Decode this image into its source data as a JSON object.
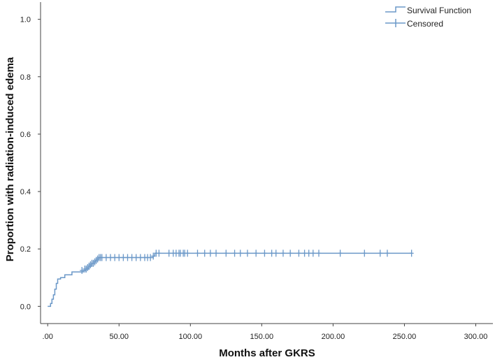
{
  "chart_data": {
    "type": "line",
    "title": "",
    "xlabel": "Months after GKRS",
    "ylabel": "Proportion with radiation-induced edema",
    "xlim": [
      -5,
      312
    ],
    "ylim": [
      -0.06,
      1.06
    ],
    "x_ticks": [
      0,
      50,
      100,
      150,
      200,
      250,
      300
    ],
    "x_tick_labels": [
      ".00",
      "50.00",
      "100.00",
      "150.00",
      "200.00",
      "250.00",
      "300.00"
    ],
    "y_ticks": [
      0,
      0.2,
      0.4,
      0.6,
      0.8,
      1.0
    ],
    "y_tick_labels": [
      "0.0",
      "0.2",
      "0.4",
      "0.6",
      "0.8",
      "1.0"
    ],
    "grid": false,
    "legend_position": "top-right",
    "legend": [
      "Survival Function",
      "Censored"
    ],
    "colors": {
      "line": "#6b98c8",
      "axis": "#444444"
    },
    "series": [
      {
        "name": "Survival Function",
        "kind": "step",
        "x": [
          0,
          2,
          3,
          4,
          5,
          6,
          7,
          9,
          12,
          17,
          25,
          27,
          29,
          31,
          33,
          35,
          36,
          74,
          75,
          255
        ],
        "y": [
          0,
          0.01,
          0.025,
          0.04,
          0.06,
          0.08,
          0.095,
          0.1,
          0.11,
          0.12,
          0.125,
          0.13,
          0.14,
          0.15,
          0.16,
          0.165,
          0.17,
          0.175,
          0.185,
          0.185
        ]
      },
      {
        "name": "Censored",
        "kind": "marker",
        "x": [
          24,
          26,
          27,
          28,
          29,
          30,
          31,
          32,
          33,
          34,
          35,
          36,
          37,
          38,
          41,
          44,
          47,
          50,
          53,
          56,
          59,
          62,
          65,
          68,
          70,
          72,
          74,
          76,
          78,
          85,
          88,
          90,
          92,
          93,
          95,
          96,
          98,
          105,
          110,
          114,
          118,
          125,
          131,
          135,
          140,
          146,
          152,
          157,
          160,
          165,
          170,
          176,
          180,
          183,
          186,
          190,
          205,
          222,
          233,
          238,
          255
        ],
        "y": [
          0.125,
          0.13,
          0.13,
          0.135,
          0.14,
          0.145,
          0.15,
          0.15,
          0.155,
          0.16,
          0.165,
          0.17,
          0.17,
          0.17,
          0.17,
          0.17,
          0.17,
          0.17,
          0.17,
          0.17,
          0.17,
          0.17,
          0.17,
          0.17,
          0.17,
          0.17,
          0.175,
          0.185,
          0.185,
          0.185,
          0.185,
          0.185,
          0.185,
          0.185,
          0.185,
          0.185,
          0.185,
          0.185,
          0.185,
          0.185,
          0.185,
          0.185,
          0.185,
          0.185,
          0.185,
          0.185,
          0.185,
          0.185,
          0.185,
          0.185,
          0.185,
          0.185,
          0.185,
          0.185,
          0.185,
          0.185,
          0.185,
          0.185,
          0.185,
          0.185,
          0.185
        ]
      }
    ]
  }
}
